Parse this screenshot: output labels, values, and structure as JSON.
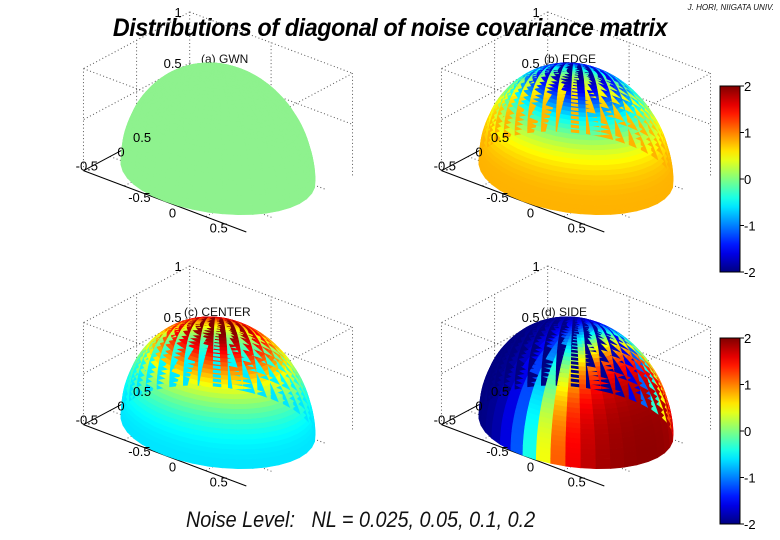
{
  "credit": "J. HORI, NIIGATA UNIV.",
  "title": "Distributions of diagonal of noise covariance matrix",
  "footer": "Noise Level:   NL = 0.025, 0.05, 0.1, 0.2",
  "colors": {
    "gwn": "#8ef28e",
    "background": "#ffffff"
  },
  "colormap": "jet",
  "chart_data": [
    {
      "type": "heatmap",
      "subtype": "hemisphere-surface",
      "title": "(a) GWN",
      "pattern": "uniform",
      "clim": [
        -2,
        2
      ],
      "ztick_labels": [
        "0.5",
        "1"
      ],
      "ytick_labels": [
        "-0.5",
        "0",
        "0.5"
      ],
      "xtick_labels": [
        "-0.5",
        "0",
        "0.5"
      ]
    },
    {
      "type": "heatmap",
      "subtype": "hemisphere-surface",
      "title": "(b) EDGE",
      "pattern": "low at top, high at edge",
      "value_range": [
        -2,
        0.8
      ],
      "clim": [
        -2,
        2
      ],
      "ztick_labels": [
        "0.5",
        "1"
      ],
      "ytick_labels": [
        "-0.5",
        "0",
        "0.5"
      ],
      "xtick_labels": [
        "-0.5",
        "0",
        "0.5"
      ],
      "colorbar_ticks": [
        "2",
        "1",
        "0",
        "-1",
        "-2"
      ]
    },
    {
      "type": "heatmap",
      "subtype": "hemisphere-surface",
      "title": "(c) CENTER",
      "pattern": "high at top, low at edge",
      "value_range": [
        -0.6,
        2
      ],
      "clim": [
        -2,
        2
      ],
      "ztick_labels": [
        "0.5",
        "1"
      ],
      "ytick_labels": [
        "-0.5",
        "0",
        "0.5"
      ],
      "xtick_labels": [
        "-0.5",
        "0",
        "0.5"
      ]
    },
    {
      "type": "heatmap",
      "subtype": "hemisphere-surface",
      "title": "(d) SIDE",
      "pattern": "low on one side, high on opposite side",
      "value_range": [
        -2,
        2
      ],
      "clim": [
        -2,
        2
      ],
      "ztick_labels": [
        "0.5",
        "1"
      ],
      "ytick_labels": [
        "-0.5",
        "0",
        "0.5"
      ],
      "xtick_labels": [
        "-0.5",
        "0",
        "0.5"
      ],
      "colorbar_ticks": [
        "2",
        "1",
        "0",
        "-1",
        "-2"
      ]
    }
  ]
}
